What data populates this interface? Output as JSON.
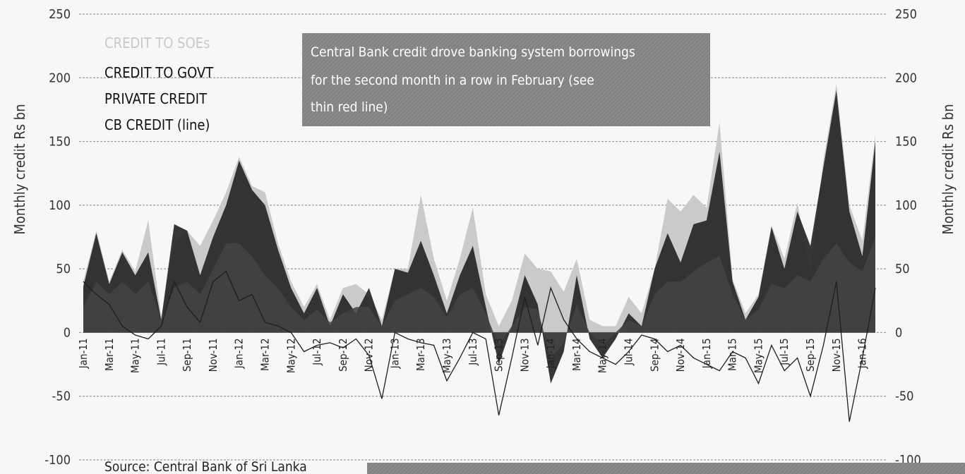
{
  "chart_data": {
    "type": "area",
    "title": "",
    "ylabel_left": "Monthly credit Rs bn",
    "ylabel_right": "Monthly credit Rs bn",
    "ylim": [
      -100,
      250
    ],
    "yticks": [
      250,
      200,
      150,
      100,
      50,
      0,
      -50,
      -100
    ],
    "grid": true,
    "legend_position": "top-left",
    "legend": [
      {
        "label": "CREDIT TO SOEs",
        "color": "#c9c9c9"
      },
      {
        "label": "CREDIT TO GOVT",
        "color": "#1e1e1e"
      },
      {
        "label": "PRIVATE CREDIT",
        "color": "#3c3c3c"
      },
      {
        "label": "CB CREDIT (line)",
        "color": "#1e1e1e"
      }
    ],
    "annotation": "Central Bank credit drove banking system borrowings for the second month in a row in February (see thin red line)",
    "source": "Source: Central Bank of Sri Lanka",
    "x_tick_labels": [
      "Jan-11",
      "Mar-11",
      "May-11",
      "Jul-11",
      "Sep-11",
      "Nov-11",
      "Jan-12",
      "Mar-12",
      "May-12",
      "Jul-12",
      "Sep-12",
      "Nov-12",
      "Jan-13",
      "Mar-13",
      "May-13",
      "Jul-13",
      "Sep-13",
      "Nov-13",
      "Jan-14",
      "Mar-14",
      "May-14",
      "Jul-14",
      "Sep-14",
      "Nov-14",
      "Jan-15",
      "Mar-15",
      "May-15",
      "Jul-15",
      "Sep-15",
      "Nov-15",
      "Jan-16"
    ],
    "months": [
      "Jan-11",
      "Feb-11",
      "Mar-11",
      "Apr-11",
      "May-11",
      "Jun-11",
      "Jul-11",
      "Aug-11",
      "Sep-11",
      "Oct-11",
      "Nov-11",
      "Dec-11",
      "Jan-12",
      "Feb-12",
      "Mar-12",
      "Apr-12",
      "May-12",
      "Jun-12",
      "Jul-12",
      "Aug-12",
      "Sep-12",
      "Oct-12",
      "Nov-12",
      "Dec-12",
      "Jan-13",
      "Feb-13",
      "Mar-13",
      "Apr-13",
      "May-13",
      "Jun-13",
      "Jul-13",
      "Aug-13",
      "Sep-13",
      "Oct-13",
      "Nov-13",
      "Dec-13",
      "Jan-14",
      "Feb-14",
      "Mar-14",
      "Apr-14",
      "May-14",
      "Jun-14",
      "Jul-14",
      "Aug-14",
      "Sep-14",
      "Oct-14",
      "Nov-14",
      "Dec-14",
      "Jan-15",
      "Feb-15",
      "Mar-15",
      "Apr-15",
      "May-15",
      "Jun-15",
      "Jul-15",
      "Aug-15",
      "Sep-15",
      "Oct-15",
      "Nov-15",
      "Dec-15",
      "Jan-16",
      "Feb-16"
    ],
    "series": [
      {
        "name": "CREDIT TO SOEs",
        "values": [
          40,
          80,
          40,
          65,
          48,
          88,
          12,
          70,
          80,
          68,
          88,
          110,
          138,
          115,
          110,
          70,
          40,
          20,
          38,
          10,
          35,
          38,
          30,
          10,
          50,
          50,
          108,
          58,
          25,
          58,
          98,
          30,
          5,
          25,
          62,
          50,
          48,
          32,
          58,
          10,
          5,
          5,
          28,
          15,
          50,
          105,
          95,
          108,
          98,
          165,
          42,
          15,
          30,
          84,
          58,
          102,
          48,
          135,
          195,
          100,
          72,
          155
        ]
      },
      {
        "name": "CREDIT TO GOVT",
        "values": [
          36,
          78,
          38,
          63,
          45,
          63,
          10,
          85,
          80,
          45,
          75,
          100,
          135,
          112,
          100,
          65,
          35,
          15,
          35,
          5,
          30,
          15,
          35,
          5,
          50,
          47,
          72,
          45,
          15,
          45,
          68,
          20,
          -25,
          5,
          45,
          22,
          -40,
          -15,
          45,
          -5,
          -20,
          -5,
          15,
          5,
          50,
          78,
          55,
          85,
          88,
          142,
          40,
          10,
          28,
          83,
          50,
          95,
          68,
          130,
          190,
          95,
          60,
          150
        ]
      },
      {
        "name": "PRIVATE CREDIT",
        "values": [
          20,
          40,
          30,
          40,
          30,
          40,
          10,
          35,
          40,
          30,
          50,
          70,
          70,
          60,
          45,
          35,
          20,
          10,
          18,
          8,
          15,
          20,
          20,
          5,
          25,
          30,
          35,
          28,
          12,
          30,
          35,
          15,
          -10,
          5,
          20,
          18,
          -20,
          -8,
          22,
          0,
          -10,
          0,
          10,
          5,
          30,
          40,
          40,
          48,
          55,
          60,
          30,
          10,
          18,
          38,
          35,
          45,
          40,
          58,
          70,
          55,
          48,
          75
        ]
      },
      {
        "name": "CB CREDIT (line)",
        "values": [
          40,
          30,
          22,
          5,
          -2,
          -5,
          5,
          40,
          20,
          8,
          40,
          48,
          25,
          30,
          8,
          5,
          0,
          -15,
          -10,
          -8,
          -12,
          -5,
          -18,
          -52,
          0,
          -5,
          -8,
          -10,
          -38,
          -20,
          0,
          -5,
          -65,
          -20,
          28,
          -10,
          35,
          10,
          -5,
          -15,
          -20,
          -25,
          -15,
          -2,
          -5,
          -15,
          -10,
          -20,
          -25,
          -30,
          -15,
          -20,
          -40,
          -10,
          -30,
          -20,
          -50,
          -10,
          40,
          -70,
          -20,
          35
        ]
      }
    ]
  }
}
